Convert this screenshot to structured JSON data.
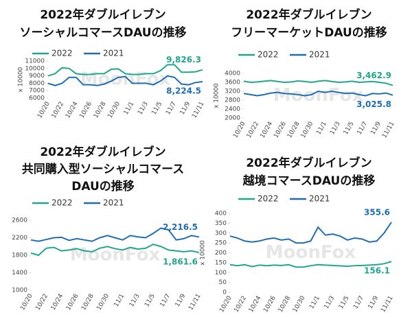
{
  "chart_data": [
    {
      "type": "line",
      "title": [
        "2022年ダブルイレブン",
        "ソーシャルコマースDAUの推移"
      ],
      "y_label": "x 10000",
      "watermark": "MoonFox",
      "categories": [
        "10/20",
        null,
        "10/22",
        null,
        "10/24",
        null,
        "10/26",
        null,
        "10/28",
        null,
        "10/30",
        null,
        "11/1",
        null,
        "11/3",
        null,
        "11/5",
        null,
        "11/7",
        null,
        "11/9",
        null,
        "11/11"
      ],
      "ylim": [
        6000,
        11000
      ],
      "yticks": [
        6000,
        7000,
        8000,
        9000,
        10000,
        11000
      ],
      "legend": "top",
      "series": [
        {
          "name": "2022",
          "color": "#1fa68c",
          "values": [
            9000,
            9300,
            10100,
            10000,
            9300,
            9200,
            9200,
            9300,
            9300,
            9900,
            9950,
            9300,
            9200,
            9200,
            9300,
            9300,
            9700,
            10500,
            10500,
            9500,
            9500,
            9550,
            9826.3
          ],
          "value_labels": [
            null,
            null,
            null,
            null,
            null,
            null,
            null,
            null,
            null,
            null,
            null,
            null,
            null,
            null,
            null,
            null,
            null,
            null,
            null,
            null,
            null,
            null,
            "9,826.3"
          ]
        },
        {
          "name": "2021",
          "color": "#1f6db5",
          "values": [
            8000,
            7700,
            8000,
            8800,
            8800,
            7800,
            7800,
            7700,
            7900,
            8300,
            8800,
            8900,
            8000,
            8000,
            8000,
            7800,
            8300,
            9000,
            8800,
            7900,
            7800,
            8100,
            8224.5
          ],
          "value_labels": [
            null,
            null,
            null,
            null,
            null,
            null,
            null,
            null,
            null,
            null,
            null,
            null,
            null,
            null,
            null,
            null,
            null,
            null,
            null,
            null,
            null,
            null,
            "8,224.5"
          ]
        }
      ]
    },
    {
      "type": "line",
      "title": [
        "2022年ダブルイレブン",
        "フリーマーケットDAUの推移"
      ],
      "y_label": "x 10000",
      "watermark": "MoonFox",
      "categories": [
        "10/20",
        null,
        "10/22",
        null,
        "10/24",
        null,
        "10/26",
        null,
        "10/28",
        null,
        "10/30",
        null,
        "11/1",
        null,
        "11/3",
        null,
        "11/5",
        null,
        "11/7",
        null,
        "11/9",
        null,
        "11/11"
      ],
      "ylim": [
        2000,
        4000
      ],
      "yticks": [
        2000,
        2400,
        2800,
        3200,
        3600,
        4000
      ],
      "legend": "top",
      "series": [
        {
          "name": "2022",
          "color": "#1fa68c",
          "values": [
            3650,
            3600,
            3620,
            3650,
            3680,
            3640,
            3600,
            3620,
            3660,
            3640,
            3600,
            3650,
            3680,
            3640,
            3600,
            3620,
            3650,
            3600,
            3620,
            3640,
            3600,
            3560,
            3462.9
          ],
          "value_labels": [
            null,
            null,
            null,
            null,
            null,
            null,
            null,
            null,
            null,
            null,
            null,
            null,
            null,
            null,
            null,
            null,
            null,
            null,
            null,
            null,
            null,
            null,
            "3,462.9"
          ]
        },
        {
          "name": "2021",
          "color": "#1f6db5",
          "values": [
            3100,
            3050,
            3000,
            3050,
            3120,
            3150,
            3100,
            3080,
            3050,
            3000,
            3050,
            3200,
            3150,
            3200,
            3150,
            3100,
            3120,
            3050,
            3000,
            3100,
            3080,
            3120,
            3025.8
          ],
          "value_labels": [
            null,
            null,
            null,
            null,
            null,
            null,
            null,
            null,
            null,
            null,
            null,
            null,
            null,
            null,
            null,
            null,
            null,
            null,
            null,
            null,
            null,
            null,
            "3,025.8"
          ]
        }
      ]
    },
    {
      "type": "line",
      "title": [
        "2022年ダブルイレブン",
        "共同購入型ソーシャルコマース",
        "DAUの推移"
      ],
      "watermark": "MoonFox",
      "categories": [
        "10/20",
        null,
        "10/22",
        null,
        "10/24",
        null,
        "10/26",
        null,
        "10/28",
        null,
        "10/30",
        null,
        "11/1",
        null,
        "11/3",
        null,
        "11/5",
        null,
        "11/7",
        null,
        "11/9",
        null,
        "11/11"
      ],
      "ylim": [
        1000,
        2600
      ],
      "yticks": [
        1000,
        1400,
        1800,
        2200,
        2600
      ],
      "legend": "top",
      "series": [
        {
          "name": "2022",
          "color": "#1fa68c",
          "values": [
            1850,
            1800,
            1960,
            1980,
            1900,
            1920,
            1950,
            1900,
            1880,
            1960,
            2000,
            1950,
            1920,
            1980,
            1940,
            1960,
            2050,
            2000,
            1920,
            1900,
            1880,
            1900,
            1861.6
          ],
          "value_labels": [
            null,
            null,
            null,
            null,
            null,
            null,
            null,
            null,
            null,
            null,
            null,
            null,
            null,
            null,
            null,
            null,
            null,
            null,
            null,
            null,
            null,
            null,
            "1,861.6"
          ]
        },
        {
          "name": "2021",
          "color": "#1f6db5",
          "values": [
            2150,
            2120,
            2160,
            2200,
            2210,
            2140,
            2180,
            2150,
            2120,
            2200,
            2250,
            2200,
            2150,
            2250,
            2220,
            2200,
            2300,
            2420,
            2380,
            2150,
            2180,
            2250,
            2216.5
          ],
          "value_labels": [
            null,
            null,
            null,
            null,
            null,
            null,
            null,
            null,
            null,
            null,
            null,
            null,
            null,
            null,
            null,
            null,
            null,
            null,
            null,
            null,
            null,
            null,
            "2,216.5"
          ]
        }
      ]
    },
    {
      "type": "line",
      "title": [
        "2022年ダブルイレブン",
        "越境コマースDAUの推移"
      ],
      "y_label": "x 10000",
      "watermark": "MoonFox",
      "categories": [
        "10/20",
        null,
        "10/22",
        null,
        "10/24",
        null,
        "10/26",
        null,
        "10/28",
        null,
        "10/30",
        null,
        "11/1",
        null,
        "11/3",
        null,
        "11/5",
        null,
        "11/7",
        null,
        "11/9",
        null,
        "11/11"
      ],
      "ylim": [
        0,
        400
      ],
      "yticks": [
        0,
        50,
        100,
        150,
        200,
        250,
        300,
        350,
        400
      ],
      "legend": "top",
      "series": [
        {
          "name": "2022",
          "color": "#1fa68c",
          "values": [
            140,
            135,
            140,
            130,
            138,
            135,
            138,
            136,
            140,
            128,
            128,
            135,
            140,
            138,
            136,
            134,
            132,
            135,
            136,
            138,
            140,
            145,
            156.1
          ],
          "value_labels": [
            null,
            null,
            null,
            null,
            null,
            null,
            null,
            null,
            null,
            null,
            null,
            null,
            null,
            null,
            null,
            null,
            null,
            null,
            null,
            null,
            null,
            null,
            "156.1"
          ]
        },
        {
          "name": "2021",
          "color": "#1f6db5",
          "values": [
            285,
            275,
            260,
            255,
            260,
            270,
            275,
            265,
            270,
            250,
            250,
            260,
            330,
            290,
            295,
            285,
            265,
            275,
            270,
            255,
            260,
            300,
            355.6
          ],
          "value_labels": [
            null,
            null,
            null,
            null,
            null,
            null,
            null,
            null,
            null,
            null,
            null,
            null,
            null,
            null,
            null,
            null,
            null,
            null,
            null,
            null,
            null,
            null,
            "355.6"
          ]
        }
      ]
    }
  ]
}
